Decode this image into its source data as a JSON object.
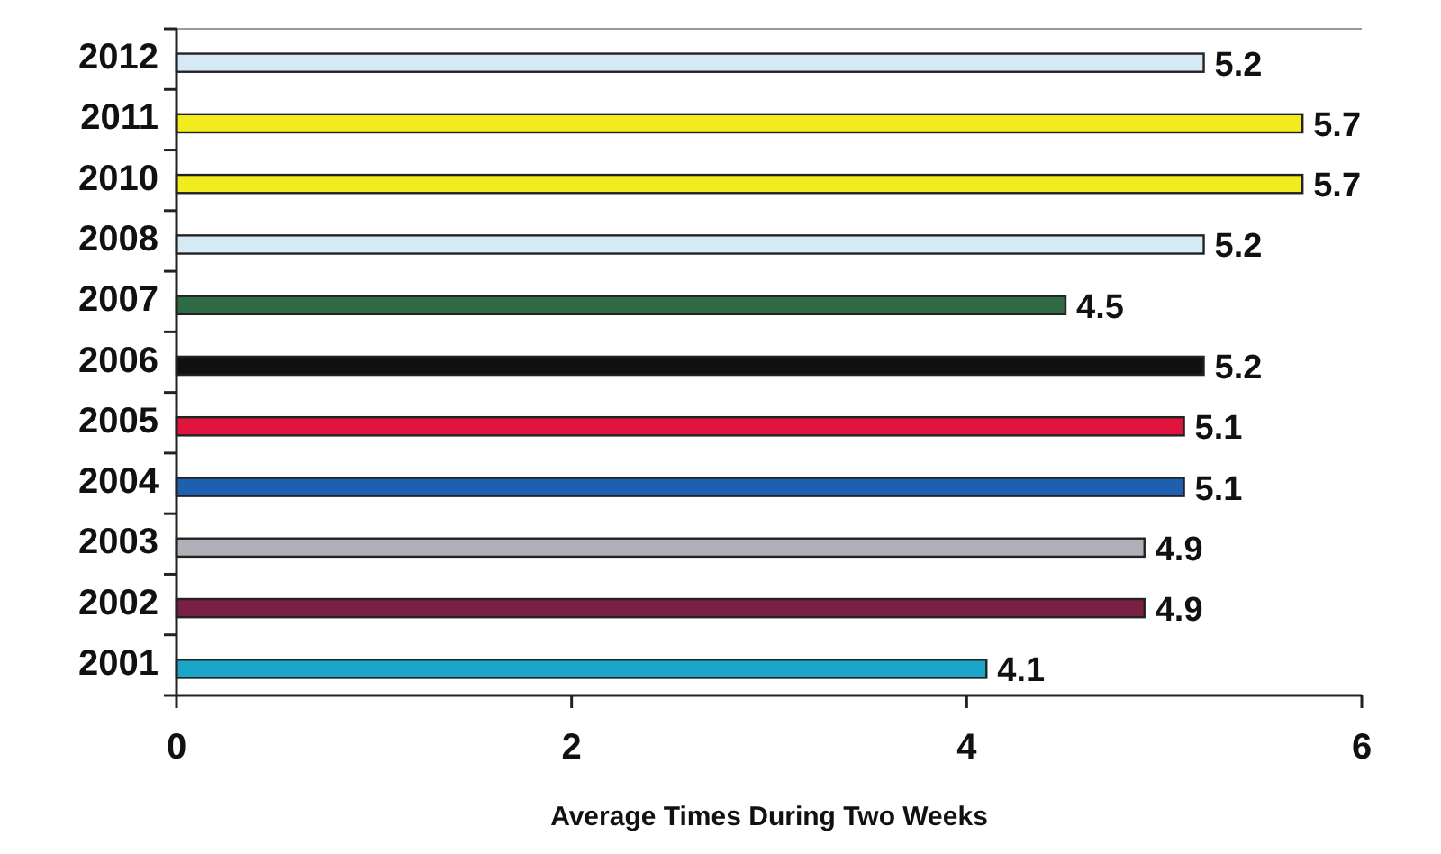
{
  "chart_data": {
    "type": "bar",
    "orientation": "horizontal",
    "xlabel": "Average Times During Two Weeks",
    "categories": [
      "2012",
      "2011",
      "2010",
      "2008",
      "2007",
      "2006",
      "2005",
      "2004",
      "2003",
      "2002",
      "2001"
    ],
    "values": [
      5.2,
      5.7,
      5.7,
      5.2,
      4.5,
      5.2,
      5.1,
      5.1,
      4.9,
      4.9,
      4.1
    ],
    "colors": [
      "#d6eaf5",
      "#f2ec1e",
      "#f2ec1e",
      "#d6eaf5",
      "#2e6b45",
      "#111111",
      "#e0143c",
      "#1f5fb0",
      "#b0b0b8",
      "#7a1f45",
      "#1aa6c8"
    ],
    "xlim": [
      0,
      6
    ],
    "xticks": [
      0,
      2,
      4,
      6
    ],
    "data_labels": true
  }
}
